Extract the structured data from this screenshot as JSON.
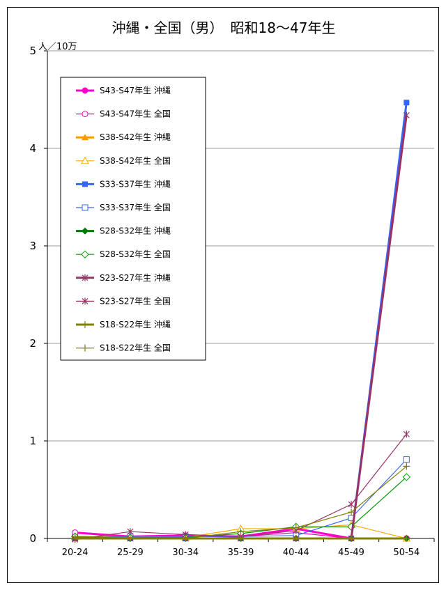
{
  "chart_data": {
    "type": "line",
    "title": "沖縄・全国（男）　昭和18～47年生",
    "ylabel": "人／10万",
    "categories": [
      "20-24",
      "25-29",
      "30-34",
      "35-39",
      "40-44",
      "45-49",
      "50-54"
    ],
    "ylim": [
      0,
      5
    ],
    "yticks": [
      "0",
      "1",
      "2",
      "3",
      "4",
      "5"
    ],
    "grid": true,
    "legend_position": "top-left",
    "series": [
      {
        "name": "S43-S47年生 沖縄",
        "color": "#ff00cc",
        "marker": "circle-filled",
        "thick": true,
        "values": [
          0.06,
          0.02,
          0.03,
          0.02,
          0.1,
          0.0,
          0.0
        ]
      },
      {
        "name": "S43-S47年生 全国",
        "color": "#ff00cc",
        "marker": "circle-open",
        "thick": false,
        "values": [
          0.06,
          0.02,
          0.02,
          0.02,
          0.06,
          0.0,
          0.0
        ]
      },
      {
        "name": "S38-S42年生 沖縄",
        "color": "#ff9900",
        "marker": "triangle-filled",
        "thick": true,
        "values": [
          0.0,
          0.0,
          0.0,
          0.0,
          0.0,
          0.0,
          0.0
        ]
      },
      {
        "name": "S38-S42年生 全国",
        "color": "#ffaa00",
        "marker": "triangle-open",
        "thick": false,
        "values": [
          0.02,
          0.02,
          0.01,
          0.1,
          0.1,
          0.14,
          0.0
        ]
      },
      {
        "name": "S33-S37年生 沖縄",
        "color": "#3366ff",
        "marker": "square-filled",
        "thick": true,
        "values": [
          0.0,
          0.0,
          0.0,
          0.0,
          0.0,
          0.0,
          4.47
        ]
      },
      {
        "name": "S33-S37年生 全国",
        "color": "#3366ff",
        "marker": "square-open",
        "thick": false,
        "values": [
          0.01,
          0.02,
          0.02,
          0.02,
          0.03,
          0.21,
          0.81
        ]
      },
      {
        "name": "S28-S32年生 沖縄",
        "color": "#007700",
        "marker": "diamond-filled",
        "thick": true,
        "values": [
          0.0,
          0.0,
          0.0,
          0.0,
          0.0,
          0.0,
          0.0
        ]
      },
      {
        "name": "S28-S32年生 全国",
        "color": "#009900",
        "marker": "diamond-open",
        "thick": false,
        "values": [
          0.02,
          0.01,
          0.01,
          0.05,
          0.12,
          0.12,
          0.63
        ]
      },
      {
        "name": "S23-S27年生 沖縄",
        "color": "#993366",
        "marker": "star",
        "thick": true,
        "values": [
          0.0,
          0.0,
          0.0,
          0.0,
          0.0,
          0.0,
          4.34
        ]
      },
      {
        "name": "S23-S27年生 全国",
        "color": "#993366",
        "marker": "star",
        "thick": false,
        "values": [
          -0.01,
          0.07,
          0.04,
          0.02,
          0.08,
          0.35,
          1.07
        ]
      },
      {
        "name": "S18-S22年生 沖縄",
        "color": "#808000",
        "marker": "plus",
        "thick": true,
        "values": [
          0.0,
          0.0,
          0.0,
          0.0,
          0.0,
          0.0,
          0.0
        ]
      },
      {
        "name": "S18-S22年生 全国",
        "color": "#808000",
        "marker": "plus",
        "thick": false,
        "values": [
          0.02,
          0.01,
          0.0,
          0.07,
          0.11,
          0.27,
          0.74
        ]
      }
    ]
  }
}
